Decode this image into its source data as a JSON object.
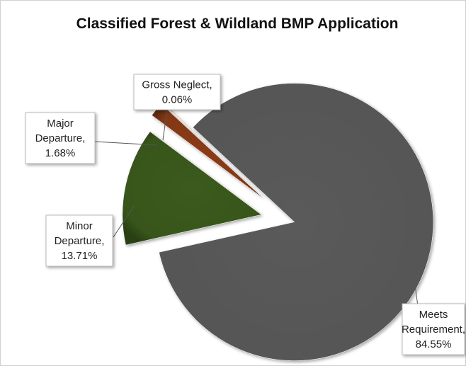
{
  "chart_data": {
    "type": "pie",
    "title": "Classified Forest & Wildland BMP Application",
    "categories": [
      "Meets Requirement",
      "Minor Departure",
      "Major Departure",
      "Gross Neglect"
    ],
    "values": [
      84.55,
      13.71,
      1.68,
      0.06
    ],
    "value_labels": [
      "84.55%",
      "13.71%",
      "1.68%",
      "0.06%"
    ],
    "label_separator": ",",
    "colors": [
      "#5a5a5a",
      "#3b5a1f",
      "#8a3a12",
      "#c0601a"
    ]
  }
}
